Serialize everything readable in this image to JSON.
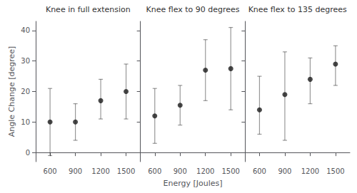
{
  "chart_data": [
    {
      "type": "scatter",
      "title": "Knee in full extension",
      "ylabel": "Angle Change [degree]",
      "x": [
        600,
        900,
        1200,
        1500
      ],
      "values": [
        10,
        10,
        17,
        20
      ],
      "error_low": [
        11,
        6,
        6,
        9
      ],
      "error_high": [
        11,
        6,
        7,
        9
      ],
      "xlim": [
        430,
        1670
      ],
      "xticks": [
        600,
        900,
        1200,
        1500
      ],
      "ylim": [
        -3,
        43
      ],
      "yticks": [
        0,
        10,
        20,
        30,
        40
      ],
      "color": "#1a1a1a",
      "grid": false
    },
    {
      "type": "scatter",
      "title": "Knee flex to 90 degrees",
      "xlabel": "Energy [Joules]",
      "x": [
        600,
        900,
        1200,
        1500
      ],
      "values": [
        12,
        15.5,
        27,
        27.5
      ],
      "error_low": [
        9,
        6.5,
        10,
        13.5
      ],
      "error_high": [
        9,
        6.5,
        10,
        13.5
      ],
      "xlim": [
        430,
        1670
      ],
      "xticks": [
        600,
        900,
        1200,
        1500
      ],
      "ylim": [
        -3,
        43
      ],
      "yticks": [
        0,
        10,
        20,
        30,
        40
      ],
      "color": "#1a1a1a",
      "grid": false,
      "tick_labels": "x"
    },
    {
      "type": "scatter",
      "title": "Knee flex to 135 degrees",
      "x": [
        600,
        900,
        1200,
        1500
      ],
      "values": [
        14,
        19,
        24,
        29
      ],
      "error_low": [
        8,
        15,
        8,
        7
      ],
      "error_high": [
        11,
        14,
        7,
        6
      ],
      "xlim": [
        430,
        1670
      ],
      "xticks": [
        600,
        900,
        1200,
        1500
      ],
      "ylim": [
        -3,
        43
      ],
      "yticks": [
        0,
        10,
        20,
        30,
        40
      ],
      "color": "#1a1a1a",
      "grid": false,
      "tick_labels": "x"
    }
  ]
}
